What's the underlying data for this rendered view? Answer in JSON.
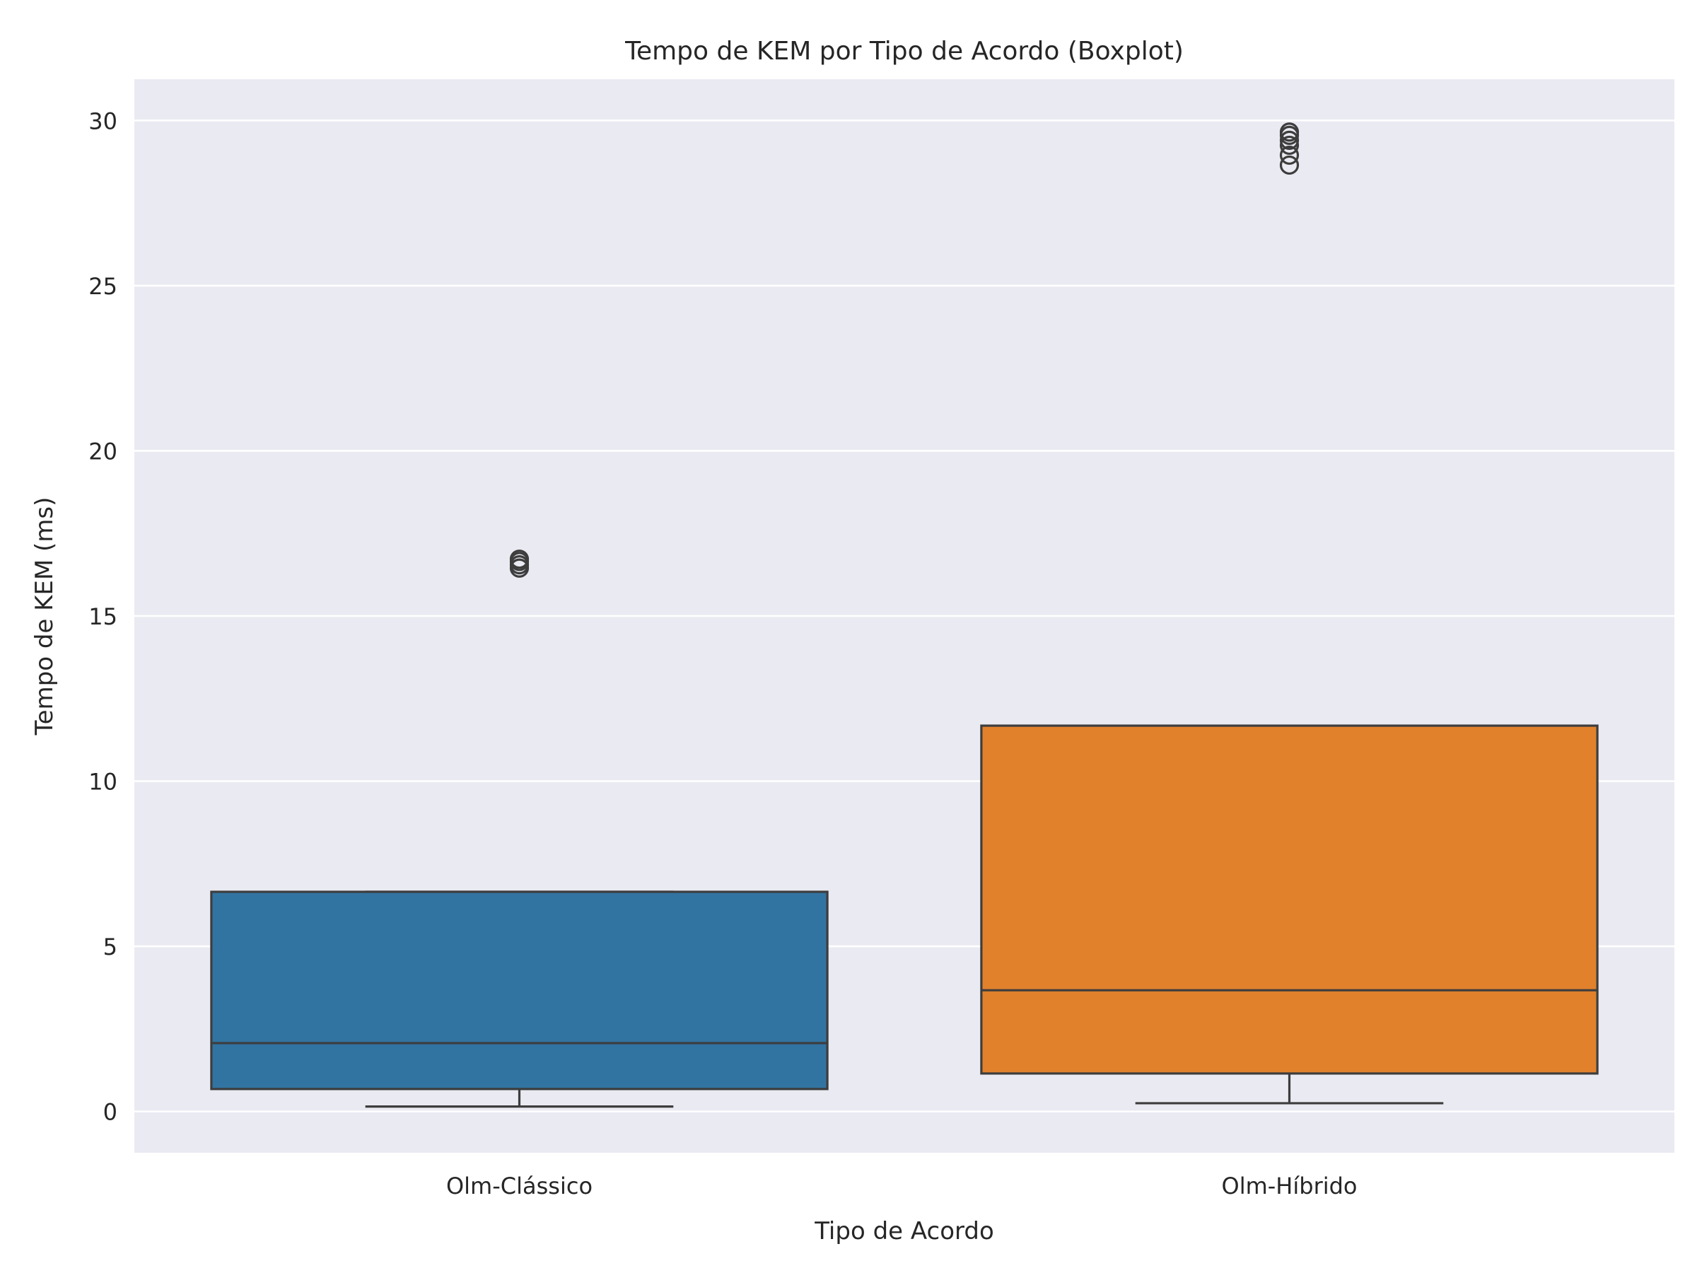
{
  "chart_data": {
    "type": "boxplot",
    "title": "Tempo de KEM por Tipo de Acordo (Boxplot)",
    "xlabel": "Tipo de Acordo",
    "ylabel": "Tempo de KEM (ms)",
    "ylim": [
      -1.25,
      31.25
    ],
    "yticks": [
      0,
      5,
      10,
      15,
      20,
      25,
      30
    ],
    "grid": true,
    "categories": [
      "Olm-Clássico",
      "Olm-Híbrido"
    ],
    "boxes": [
      {
        "category": "Olm-Clássico",
        "color": "#3274A1",
        "whisker_low": 0.15,
        "q1": 0.68,
        "median": 2.07,
        "q3": 6.65,
        "whisker_high": 6.65,
        "outliers": [
          16.45,
          16.55,
          16.65,
          16.72
        ]
      },
      {
        "category": "Olm-Híbrido",
        "color": "#E1812C",
        "whisker_low": 0.25,
        "q1": 1.15,
        "median": 3.67,
        "q3": 11.68,
        "whisker_high": 11.68,
        "outliers": [
          28.65,
          28.95,
          29.25,
          29.4,
          29.55,
          29.65
        ]
      }
    ],
    "colors": {
      "background": "#EAEAF2",
      "grid": "#FFFFFF",
      "edge": "#3D3D3D",
      "text": "#262626"
    }
  }
}
